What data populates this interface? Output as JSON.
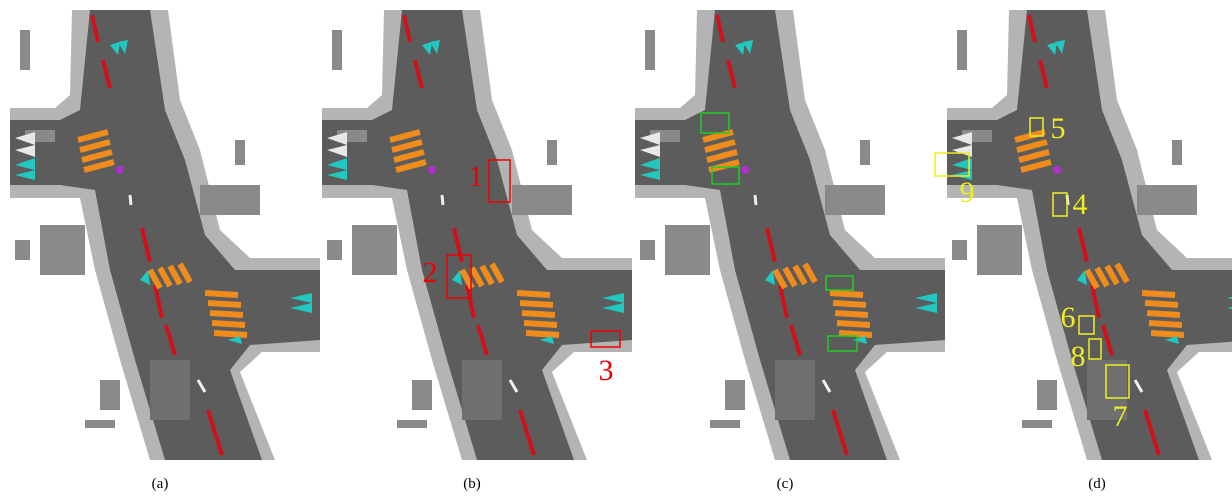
{
  "panels": [
    {
      "caption": "(a)"
    },
    {
      "caption": "(b)",
      "annotations": [
        "1",
        "2",
        "3"
      ]
    },
    {
      "caption": "(c)"
    },
    {
      "caption": "(d)",
      "annotations": [
        "5",
        "9",
        "4",
        "6",
        "8",
        "7"
      ]
    }
  ]
}
